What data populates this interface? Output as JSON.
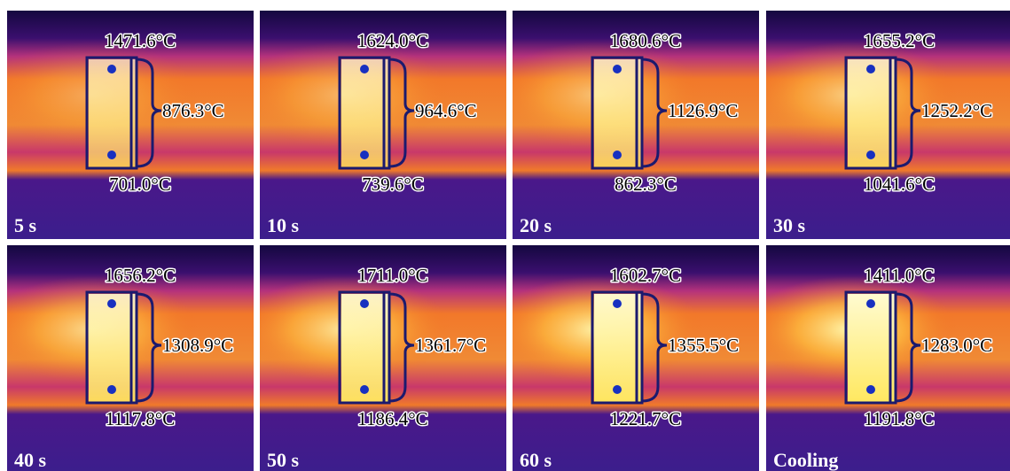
{
  "panels": [
    {
      "label": "5 s",
      "top": "1471.6°C",
      "side": "876.3°C",
      "bottom": "701.0°C"
    },
    {
      "label": "10 s",
      "top": "1624.0°C",
      "side": "964.6°C",
      "bottom": "739.6°C"
    },
    {
      "label": "20 s",
      "top": "1680.6°C",
      "side": "1126.9°C",
      "bottom": "862.3°C"
    },
    {
      "label": "30 s",
      "top": "1655.2°C",
      "side": "1252.2°C",
      "bottom": "1041.6°C"
    },
    {
      "label": "40 s",
      "top": "1656.2°C",
      "side": "1308.9°C",
      "bottom": "1117.8°C"
    },
    {
      "label": "50 s",
      "top": "1711.0°C",
      "side": "1361.7°C",
      "bottom": "1186.4°C"
    },
    {
      "label": "60 s",
      "top": "1602.7°C",
      "side": "1355.5°C",
      "bottom": "1221.7°C"
    },
    {
      "label": "Cooling",
      "top": "1411.0°C",
      "side": "1283.0°C",
      "bottom": "1191.8°C"
    }
  ]
}
